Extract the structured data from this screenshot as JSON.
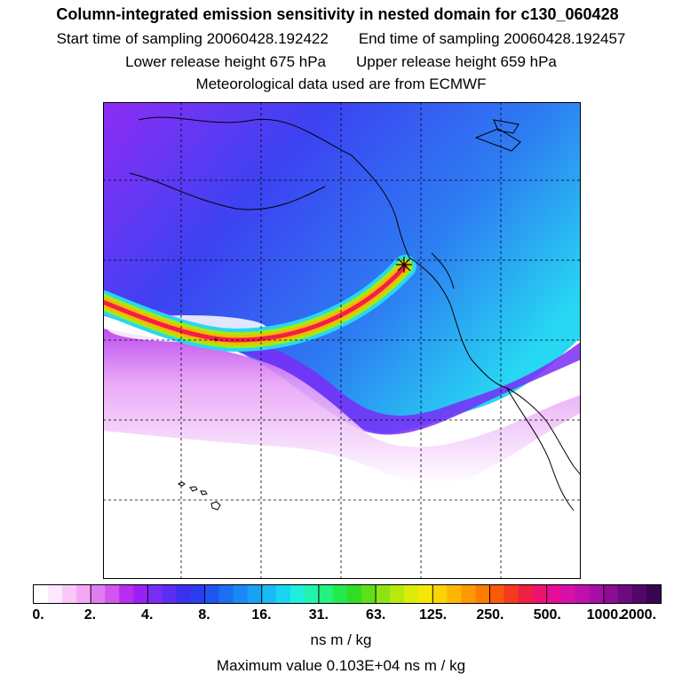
{
  "title": "Column-integrated emission sensitivity in nested domain for c130_060428",
  "row1": {
    "left": "Start time of sampling 20060428.192422",
    "right": "End time of sampling 20060428.192457"
  },
  "row2": {
    "left": "Lower release height  675 hPa",
    "right": "Upper release height  659 hPa"
  },
  "row3": "Meteorological data used are from ECMWF",
  "colorbar": {
    "tick_labels": [
      "0.",
      "2.",
      "4.",
      "8.",
      "16.",
      "31.",
      "63.",
      "125.",
      "250.",
      "500.",
      "1000.",
      "2000."
    ],
    "colors": [
      "#ffffff",
      "#fde8fd",
      "#f9c8f9",
      "#f4a7f6",
      "#e07ef0",
      "#d155ee",
      "#b92cf0",
      "#9a20f5",
      "#7a2cf7",
      "#5a2ef5",
      "#3b30f0",
      "#2a3ef0",
      "#1f55f0",
      "#1c6ef2",
      "#1a88f4",
      "#19a2f5",
      "#19bbf4",
      "#1ad4f2",
      "#1feedd",
      "#20f4b0",
      "#22f27e",
      "#22ea4c",
      "#30dd22",
      "#60e01a",
      "#8ee412",
      "#b8e80c",
      "#dcec08",
      "#f4e804",
      "#fcd200",
      "#fdb600",
      "#fd9900",
      "#fd7c00",
      "#fb5a08",
      "#f53a20",
      "#f02040",
      "#ec1270",
      "#e60e96",
      "#d610a8",
      "#c010ac",
      "#a60fa4",
      "#8a0d94",
      "#6e0a80",
      "#520768",
      "#3a0450"
    ],
    "units": "ns m / kg"
  },
  "max_value": "Maximum value  0.103E+04 ns m / kg"
}
